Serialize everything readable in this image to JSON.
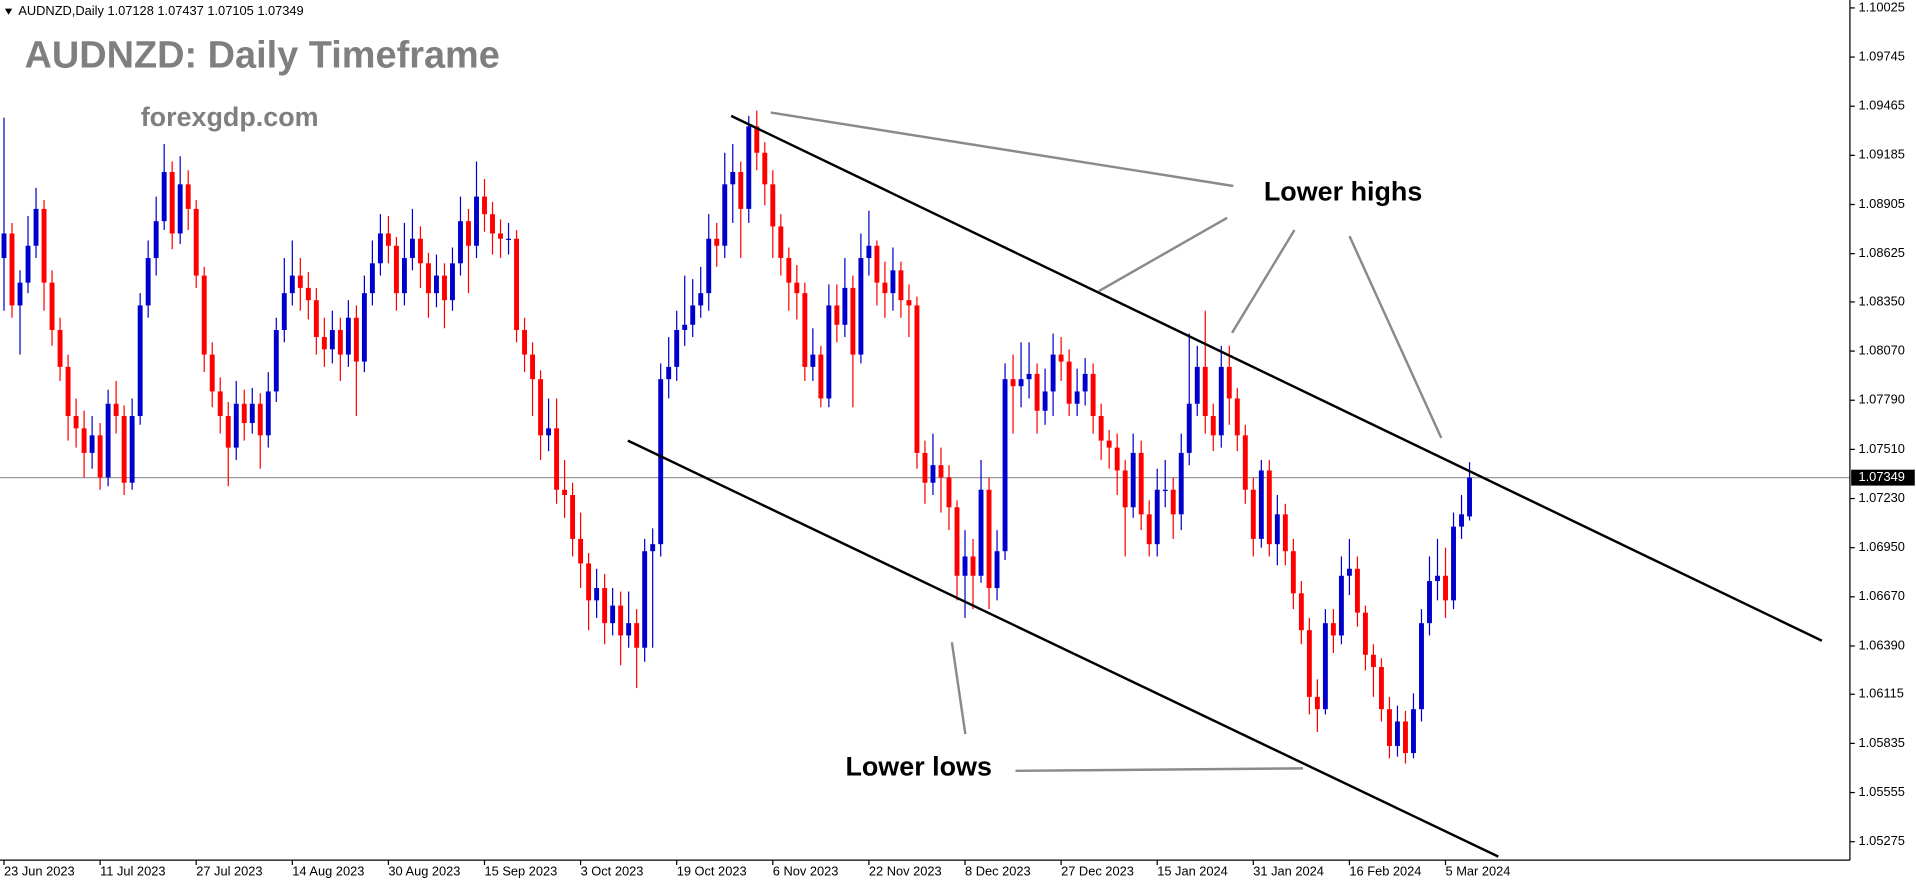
{
  "chart_data": {
    "type": "candlestick",
    "header": {
      "symbol": "AUDNZD,Daily",
      "values": [
        1.07128,
        1.07437,
        1.07105,
        1.07349
      ]
    },
    "title": "AUDNZD: Daily Timeframe",
    "subtitle": "forexgdp.com",
    "annotations": [
      "Lower highs",
      "Lower lows"
    ],
    "up_color": "#0000cd",
    "down_color": "#ff0000",
    "grid": false,
    "price_line": 1.07349,
    "ylim": [
      1.0517,
      1.1007
    ],
    "yticks": [
      1.10025,
      1.09745,
      1.09465,
      1.09185,
      1.08905,
      1.08625,
      {
        "value": 1.0835,
        "label": "1.08350"
      },
      {
        "value": 1.0807,
        "label": "1.08070"
      },
      {
        "value": 1.0779,
        "label": "1.07790"
      },
      {
        "value": 1.0751,
        "label": "1.07510"
      },
      {
        "value": 1.0723,
        "label": "1.07230"
      },
      {
        "value": 1.0695,
        "label": "1.06950"
      },
      {
        "value": 1.0667,
        "label": "1.06670"
      },
      {
        "value": 1.0639,
        "label": "1.06390"
      },
      1.06115,
      1.05835,
      1.05555,
      1.05275
    ],
    "xlim": [
      -0.5,
      230.5
    ],
    "categories": [
      "23 Jun 2023",
      null,
      null,
      null,
      null,
      null,
      null,
      null,
      null,
      null,
      null,
      null,
      "11 Jul 2023",
      null,
      null,
      null,
      null,
      null,
      null,
      null,
      null,
      null,
      null,
      null,
      "27 Jul 2023",
      null,
      null,
      null,
      null,
      null,
      null,
      null,
      null,
      null,
      null,
      null,
      "14 Aug 2023",
      null,
      null,
      null,
      null,
      null,
      null,
      null,
      null,
      null,
      null,
      null,
      "30 Aug 2023",
      null,
      null,
      null,
      null,
      null,
      null,
      null,
      null,
      null,
      null,
      null,
      "15 Sep 2023",
      null,
      null,
      null,
      null,
      null,
      null,
      null,
      null,
      null,
      null,
      null,
      "3 Oct 2023",
      null,
      null,
      null,
      null,
      null,
      null,
      null,
      null,
      null,
      null,
      null,
      "19 Oct 2023",
      null,
      null,
      null,
      null,
      null,
      null,
      null,
      null,
      null,
      null,
      null,
      "6 Nov 2023",
      null,
      null,
      null,
      null,
      null,
      null,
      null,
      null,
      null,
      null,
      null,
      "22 Nov 2023",
      null,
      null,
      null,
      null,
      null,
      null,
      null,
      null,
      null,
      null,
      null,
      "8 Dec 2023",
      null,
      null,
      null,
      null,
      null,
      null,
      null,
      null,
      null,
      null,
      null,
      "27 Dec 2023",
      null,
      null,
      null,
      null,
      null,
      null,
      null,
      null,
      null,
      null,
      null,
      "15 Jan 2024",
      null,
      null,
      null,
      null,
      null,
      null,
      null,
      null,
      null,
      null,
      null,
      "31 Jan 2024",
      null,
      null,
      null,
      null,
      null,
      null,
      null,
      null,
      null,
      null,
      null,
      "16 Feb 2024",
      null,
      null,
      null,
      null,
      null,
      null,
      null,
      null,
      null,
      null,
      null,
      "5 Mar 2024",
      null,
      null,
      null
    ],
    "candles": [
      [
        1.086,
        1.094,
        1.083,
        1.0874
      ],
      [
        1.0874,
        1.088,
        1.0826,
        1.0833
      ],
      [
        1.0833,
        1.0853,
        1.0805,
        1.0846
      ],
      [
        1.0846,
        1.0884,
        1.084,
        1.0867
      ],
      [
        1.0867,
        1.09,
        1.086,
        1.0888
      ],
      [
        1.0888,
        1.0893,
        1.083,
        1.0846
      ],
      [
        1.0846,
        1.0853,
        1.081,
        1.0819
      ],
      [
        1.0819,
        1.0826,
        1.079,
        1.0798
      ],
      [
        1.0798,
        1.0805,
        1.0756,
        1.077
      ],
      [
        1.077,
        1.078,
        1.0752,
        1.0763
      ],
      [
        1.0763,
        1.0773,
        1.0735,
        1.0749
      ],
      [
        1.0749,
        1.077,
        1.074,
        1.0759
      ],
      [
        1.0759,
        1.0766,
        1.0728,
        1.0735
      ],
      [
        1.0735,
        1.0785,
        1.073,
        1.0777
      ],
      [
        1.0777,
        1.079,
        1.076,
        1.077
      ],
      [
        1.077,
        1.0776,
        1.0725,
        1.0732
      ],
      [
        1.0732,
        1.078,
        1.0728,
        1.077
      ],
      [
        1.077,
        1.084,
        1.0765,
        1.0833
      ],
      [
        1.0833,
        1.087,
        1.0826,
        1.086
      ],
      [
        1.086,
        1.0895,
        1.085,
        1.0881
      ],
      [
        1.0881,
        1.0925,
        1.0876,
        1.0909
      ],
      [
        1.0909,
        1.0915,
        1.0865,
        1.0874
      ],
      [
        1.0874,
        1.0918,
        1.0868,
        1.0902
      ],
      [
        1.0902,
        1.091,
        1.0876,
        1.0888
      ],
      [
        1.0888,
        1.0893,
        1.0843,
        1.085
      ],
      [
        1.085,
        1.0855,
        1.0795,
        1.0805
      ],
      [
        1.0805,
        1.0812,
        1.0775,
        1.0784
      ],
      [
        1.0784,
        1.0792,
        1.076,
        1.077
      ],
      [
        1.077,
        1.0778,
        1.073,
        1.0752
      ],
      [
        1.0752,
        1.079,
        1.0745,
        1.0777
      ],
      [
        1.0777,
        1.0785,
        1.0756,
        1.0766
      ],
      [
        1.0766,
        1.0786,
        1.076,
        1.0777
      ],
      [
        1.0777,
        1.0783,
        1.074,
        1.0759
      ],
      [
        1.0759,
        1.0795,
        1.0752,
        1.0784
      ],
      [
        1.0784,
        1.0826,
        1.0778,
        1.0819
      ],
      [
        1.0819,
        1.086,
        1.0812,
        1.084
      ],
      [
        1.084,
        1.087,
        1.0833,
        1.085
      ],
      [
        1.085,
        1.086,
        1.083,
        1.0843
      ],
      [
        1.0843,
        1.0852,
        1.0825,
        1.0836
      ],
      [
        1.0836,
        1.0843,
        1.0805,
        1.0815
      ],
      [
        1.0815,
        1.0826,
        1.0798,
        1.0808
      ],
      [
        1.0808,
        1.083,
        1.08,
        1.0819
      ],
      [
        1.0819,
        1.0826,
        1.079,
        1.0805
      ],
      [
        1.0805,
        1.0836,
        1.0798,
        1.0826
      ],
      [
        1.0826,
        1.0833,
        1.077,
        1.0801
      ],
      [
        1.0801,
        1.085,
        1.0795,
        1.084
      ],
      [
        1.084,
        1.087,
        1.0833,
        1.0857
      ],
      [
        1.0857,
        1.0885,
        1.085,
        1.0874
      ],
      [
        1.0874,
        1.0884,
        1.0857,
        1.0867
      ],
      [
        1.0867,
        1.0872,
        1.083,
        1.084
      ],
      [
        1.084,
        1.088,
        1.0833,
        1.086
      ],
      [
        1.086,
        1.0888,
        1.0853,
        1.0871
      ],
      [
        1.0871,
        1.0878,
        1.0843,
        1.0857
      ],
      [
        1.0857,
        1.0863,
        1.0826,
        1.084
      ],
      [
        1.084,
        1.0862,
        1.0832,
        1.085
      ],
      [
        1.085,
        1.0857,
        1.082,
        1.0836
      ],
      [
        1.0836,
        1.0866,
        1.083,
        1.0857
      ],
      [
        1.0857,
        1.0895,
        1.085,
        1.0881
      ],
      [
        1.0881,
        1.0888,
        1.084,
        1.0867
      ],
      [
        1.0867,
        1.0915,
        1.086,
        1.0895
      ],
      [
        1.0895,
        1.0905,
        1.0875,
        1.0885
      ],
      [
        1.0885,
        1.0892,
        1.0862,
        1.0874
      ],
      [
        1.0874,
        1.0882,
        1.086,
        1.0871
      ],
      [
        1.0871,
        1.088,
        1.0862,
        1.0871
      ],
      [
        1.0871,
        1.0876,
        1.0812,
        1.0819
      ],
      [
        1.0819,
        1.0826,
        1.0795,
        1.0805
      ],
      [
        1.0805,
        1.0812,
        1.077,
        1.0791
      ],
      [
        1.0791,
        1.0796,
        1.0745,
        1.0759
      ],
      [
        1.0759,
        1.078,
        1.075,
        1.0763
      ],
      [
        1.0763,
        1.078,
        1.072,
        1.0728
      ],
      [
        1.0728,
        1.0745,
        1.0712,
        1.0725
      ],
      [
        1.0725,
        1.0732,
        1.069,
        1.07
      ],
      [
        1.07,
        1.0715,
        1.0672,
        1.0686
      ],
      [
        1.0686,
        1.0692,
        1.0648,
        1.0665
      ],
      [
        1.0665,
        1.0683,
        1.0655,
        1.0672
      ],
      [
        1.0672,
        1.068,
        1.064,
        1.0652
      ],
      [
        1.0652,
        1.0672,
        1.0645,
        1.0662
      ],
      [
        1.0662,
        1.067,
        1.0628,
        1.0645
      ],
      [
        1.0645,
        1.067,
        1.0638,
        1.0652
      ],
      [
        1.0652,
        1.066,
        1.0615,
        1.0638
      ],
      [
        1.0638,
        1.07,
        1.063,
        1.0693
      ],
      [
        1.0693,
        1.0706,
        1.0638,
        1.0697
      ],
      [
        1.0697,
        1.08,
        1.069,
        1.0791
      ],
      [
        1.0791,
        1.0815,
        1.078,
        1.0798
      ],
      [
        1.0798,
        1.083,
        1.079,
        1.0819
      ],
      [
        1.0819,
        1.085,
        1.081,
        1.0822
      ],
      [
        1.0822,
        1.0848,
        1.0815,
        1.0833
      ],
      [
        1.0833,
        1.0855,
        1.0826,
        1.084
      ],
      [
        1.084,
        1.0885,
        1.083,
        1.0871
      ],
      [
        1.0871,
        1.088,
        1.0855,
        1.0867
      ],
      [
        1.0867,
        1.092,
        1.086,
        1.0902
      ],
      [
        1.0902,
        1.0925,
        1.088,
        1.0909
      ],
      [
        1.0909,
        1.0915,
        1.086,
        1.0888
      ],
      [
        1.0888,
        1.0941,
        1.088,
        1.0935
      ],
      [
        1.0935,
        1.0944,
        1.091,
        1.092
      ],
      [
        1.092,
        1.0926,
        1.089,
        1.0902
      ],
      [
        1.0902,
        1.091,
        1.086,
        1.0878
      ],
      [
        1.0878,
        1.0885,
        1.085,
        1.086
      ],
      [
        1.086,
        1.0866,
        1.083,
        1.0846
      ],
      [
        1.0846,
        1.0856,
        1.0825,
        1.084
      ],
      [
        1.084,
        1.0846,
        1.079,
        1.0798
      ],
      [
        1.0798,
        1.082,
        1.079,
        1.0805
      ],
      [
        1.0805,
        1.081,
        1.0775,
        1.078
      ],
      [
        1.078,
        1.0845,
        1.0775,
        1.0833
      ],
      [
        1.0833,
        1.0845,
        1.0812,
        1.0822
      ],
      [
        1.0822,
        1.086,
        1.0815,
        1.0843
      ],
      [
        1.0843,
        1.085,
        1.0775,
        1.0805
      ],
      [
        1.0805,
        1.0874,
        1.08,
        1.086
      ],
      [
        1.086,
        1.0887,
        1.085,
        1.0867
      ],
      [
        1.0867,
        1.087,
        1.0833,
        1.0846
      ],
      [
        1.0846,
        1.0858,
        1.0826,
        1.084
      ],
      [
        1.084,
        1.0866,
        1.083,
        1.0853
      ],
      [
        1.0853,
        1.0858,
        1.0826,
        1.0836
      ],
      [
        1.0836,
        1.0845,
        1.0815,
        1.0833
      ],
      [
        1.0833,
        1.0838,
        1.074,
        1.0749
      ],
      [
        1.0749,
        1.0756,
        1.072,
        1.0732
      ],
      [
        1.0732,
        1.076,
        1.0725,
        1.0742
      ],
      [
        1.0742,
        1.0752,
        1.0715,
        1.0735
      ],
      [
        1.0735,
        1.0742,
        1.0705,
        1.0718
      ],
      [
        1.0718,
        1.0722,
        1.0665,
        1.0679
      ],
      [
        1.0679,
        1.0705,
        1.0655,
        1.069
      ],
      [
        1.069,
        1.07,
        1.066,
        1.0679
      ],
      [
        1.0679,
        1.0745,
        1.0675,
        1.0728
      ],
      [
        1.0728,
        1.0735,
        1.066,
        1.0672
      ],
      [
        1.0672,
        1.0705,
        1.0665,
        1.0693
      ],
      [
        1.0693,
        1.08,
        1.0688,
        1.0791
      ],
      [
        1.0791,
        1.0805,
        1.076,
        1.0787
      ],
      [
        1.0787,
        1.0812,
        1.0775,
        1.0791
      ],
      [
        1.0791,
        1.0812,
        1.078,
        1.0794
      ],
      [
        1.0794,
        1.08,
        1.076,
        1.0773
      ],
      [
        1.0773,
        1.0797,
        1.0765,
        1.0784
      ],
      [
        1.0784,
        1.0817,
        1.077,
        1.0805
      ],
      [
        1.0805,
        1.0815,
        1.079,
        1.0801
      ],
      [
        1.0801,
        1.0808,
        1.077,
        1.0777
      ],
      [
        1.0777,
        1.0797,
        1.077,
        1.0784
      ],
      [
        1.0784,
        1.0803,
        1.0776,
        1.0794
      ],
      [
        1.0794,
        1.08,
        1.076,
        1.077
      ],
      [
        1.077,
        1.0777,
        1.0745,
        1.0756
      ],
      [
        1.0756,
        1.0762,
        1.074,
        1.0752
      ],
      [
        1.0752,
        1.076,
        1.0725,
        1.0739
      ],
      [
        1.0739,
        1.0745,
        1.069,
        1.0718
      ],
      [
        1.0718,
        1.076,
        1.0712,
        1.0749
      ],
      [
        1.0749,
        1.0756,
        1.0705,
        1.0714
      ],
      [
        1.0714,
        1.0722,
        1.069,
        1.0697
      ],
      [
        1.0697,
        1.074,
        1.069,
        1.0728
      ],
      [
        1.0728,
        1.0745,
        1.0718,
        1.0728
      ],
      [
        1.0728,
        1.0735,
        1.07,
        1.0714
      ],
      [
        1.0714,
        1.076,
        1.0705,
        1.0749
      ],
      [
        1.0749,
        1.0817,
        1.0742,
        1.0777
      ],
      [
        1.0777,
        1.081,
        1.077,
        1.0798
      ],
      [
        1.0798,
        1.083,
        1.076,
        1.077
      ],
      [
        1.077,
        1.0777,
        1.075,
        1.0759
      ],
      [
        1.0759,
        1.081,
        1.0752,
        1.0798
      ],
      [
        1.0798,
        1.081,
        1.0765,
        1.078
      ],
      [
        1.078,
        1.0786,
        1.075,
        1.0759
      ],
      [
        1.0759,
        1.0765,
        1.072,
        1.0728
      ],
      [
        1.0728,
        1.0735,
        1.069,
        1.07
      ],
      [
        1.07,
        1.0745,
        1.0695,
        1.0739
      ],
      [
        1.0739,
        1.0745,
        1.069,
        1.0697
      ],
      [
        1.0697,
        1.0725,
        1.0685,
        1.0714
      ],
      [
        1.0714,
        1.072,
        1.0685,
        1.0693
      ],
      [
        1.0693,
        1.07,
        1.066,
        1.0669
      ],
      [
        1.0669,
        1.0676,
        1.064,
        1.0648
      ],
      [
        1.0648,
        1.0655,
        1.06,
        1.061
      ],
      [
        1.061,
        1.062,
        1.059,
        1.0603
      ],
      [
        1.0603,
        1.066,
        1.06,
        1.0652
      ],
      [
        1.0652,
        1.066,
        1.0635,
        1.0645
      ],
      [
        1.0645,
        1.069,
        1.064,
        1.0679
      ],
      [
        1.0679,
        1.07,
        1.0668,
        1.0683
      ],
      [
        1.0683,
        1.069,
        1.065,
        1.0658
      ],
      [
        1.0658,
        1.0662,
        1.0625,
        1.0634
      ],
      [
        1.0634,
        1.064,
        1.061,
        1.0627
      ],
      [
        1.0627,
        1.0632,
        1.0596,
        1.0603
      ],
      [
        1.0603,
        1.061,
        1.0575,
        1.0582
      ],
      [
        1.0582,
        1.0605,
        1.0576,
        1.0596
      ],
      [
        1.0596,
        1.0602,
        1.0572,
        1.0578
      ],
      [
        1.0578,
        1.0612,
        1.0575,
        1.0603
      ],
      [
        1.0603,
        1.066,
        1.0596,
        1.0652
      ],
      [
        1.0652,
        1.069,
        1.0645,
        1.0676
      ],
      [
        1.0676,
        1.07,
        1.0665,
        1.0679
      ],
      [
        1.0679,
        1.0695,
        1.0655,
        1.0665
      ],
      [
        1.0665,
        1.0715,
        1.066,
        1.0707
      ],
      [
        1.0707,
        1.0725,
        1.07,
        1.0714
      ],
      [
        1.07128,
        1.07437,
        1.07105,
        1.07349
      ]
    ],
    "trendlines": [
      {
        "x": [
          90.8,
          227.0
        ],
        "y": [
          1.0941,
          1.0642
        ]
      },
      {
        "x": [
          77.9,
          186.6
        ],
        "y": [
          1.0756,
          1.0519
        ]
      }
    ]
  }
}
